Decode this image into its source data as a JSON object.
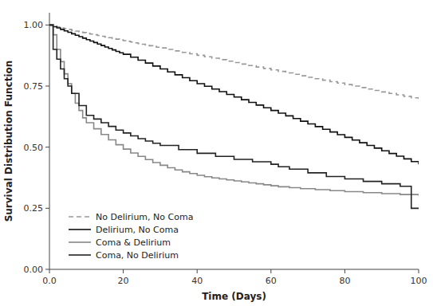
{
  "chart_data": {
    "type": "step",
    "xlabel": "Time (Days)",
    "ylabel": "Survival Distribution Function",
    "xlim": [
      0,
      100
    ],
    "ylim": [
      0.0,
      1.05
    ],
    "xticks": [
      {
        "value": 0,
        "label": "0.0"
      },
      20,
      40,
      60,
      80,
      100
    ],
    "yticks": [
      {
        "value": 0.0,
        "label": "0.00"
      },
      {
        "value": 0.25,
        "label": "0.25"
      },
      {
        "value": 0.5,
        "label": "0.50"
      },
      {
        "value": 0.75,
        "label": "0.75"
      },
      {
        "value": 1.0,
        "label": "1.00"
      }
    ],
    "grid": false,
    "legend": "lower left",
    "series": [
      {
        "name": "No Delirium, No Coma",
        "color": "#999999",
        "line_style": "dashed",
        "x": [
          0,
          1,
          2,
          3,
          4,
          5,
          6,
          7,
          8,
          9,
          10,
          11,
          12,
          13,
          14,
          15,
          16,
          17,
          18,
          19,
          20,
          21,
          22,
          23,
          24,
          25,
          26,
          27,
          28,
          29,
          30,
          32,
          34,
          36,
          38,
          40,
          42,
          44,
          46,
          48,
          50,
          52,
          54,
          56,
          58,
          60,
          62,
          64,
          66,
          68,
          70,
          72,
          74,
          76,
          78,
          80,
          82,
          84,
          86,
          88,
          90,
          92,
          94,
          96,
          98,
          100
        ],
        "values": [
          1.0,
          0.995,
          0.992,
          0.988,
          0.985,
          0.982,
          0.978,
          0.975,
          0.972,
          0.969,
          0.966,
          0.963,
          0.96,
          0.957,
          0.954,
          0.951,
          0.948,
          0.945,
          0.942,
          0.939,
          0.936,
          0.933,
          0.93,
          0.927,
          0.924,
          0.921,
          0.918,
          0.915,
          0.912,
          0.909,
          0.906,
          0.9,
          0.894,
          0.888,
          0.882,
          0.876,
          0.87,
          0.864,
          0.858,
          0.852,
          0.846,
          0.84,
          0.834,
          0.828,
          0.822,
          0.816,
          0.81,
          0.804,
          0.798,
          0.792,
          0.786,
          0.78,
          0.774,
          0.768,
          0.762,
          0.756,
          0.75,
          0.744,
          0.738,
          0.732,
          0.726,
          0.72,
          0.714,
          0.708,
          0.702,
          0.696
        ]
      },
      {
        "name": "Delirium, No Coma",
        "color": "#111111",
        "line_style": "solid",
        "x": [
          0,
          1,
          2,
          3,
          4,
          5,
          6,
          7,
          8,
          9,
          10,
          11,
          12,
          13,
          14,
          15,
          16,
          17,
          18,
          19,
          20,
          22,
          24,
          26,
          28,
          30,
          32,
          34,
          36,
          38,
          40,
          42,
          44,
          46,
          48,
          50,
          52,
          54,
          56,
          58,
          60,
          62,
          64,
          66,
          68,
          70,
          72,
          74,
          76,
          78,
          80,
          82,
          84,
          86,
          88,
          90,
          92,
          94,
          96,
          98,
          100
        ],
        "values": [
          1.0,
          0.993,
          0.988,
          0.982,
          0.976,
          0.97,
          0.964,
          0.958,
          0.952,
          0.946,
          0.94,
          0.934,
          0.928,
          0.922,
          0.916,
          0.91,
          0.904,
          0.898,
          0.892,
          0.886,
          0.88,
          0.868,
          0.856,
          0.844,
          0.832,
          0.82,
          0.808,
          0.796,
          0.784,
          0.772,
          0.76,
          0.749,
          0.738,
          0.727,
          0.716,
          0.705,
          0.694,
          0.683,
          0.672,
          0.661,
          0.65,
          0.639,
          0.628,
          0.617,
          0.606,
          0.595,
          0.584,
          0.573,
          0.562,
          0.551,
          0.54,
          0.529,
          0.518,
          0.507,
          0.496,
          0.485,
          0.474,
          0.463,
          0.452,
          0.441,
          0.43
        ]
      },
      {
        "name": "Coma & Delirium",
        "color": "#888888",
        "line_style": "solid",
        "x": [
          0,
          1,
          2,
          3,
          4,
          5,
          6,
          7,
          8,
          9,
          10,
          12,
          14,
          16,
          18,
          20,
          22,
          24,
          26,
          28,
          30,
          32,
          34,
          36,
          38,
          40,
          42,
          44,
          46,
          48,
          50,
          52,
          54,
          56,
          58,
          60,
          62,
          65,
          68,
          72,
          76,
          80,
          85,
          90,
          95,
          100
        ],
        "values": [
          1.0,
          0.96,
          0.9,
          0.85,
          0.8,
          0.76,
          0.72,
          0.68,
          0.65,
          0.62,
          0.6,
          0.575,
          0.552,
          0.53,
          0.51,
          0.492,
          0.476,
          0.462,
          0.449,
          0.437,
          0.426,
          0.416,
          0.407,
          0.399,
          0.392,
          0.385,
          0.379,
          0.374,
          0.37,
          0.366,
          0.362,
          0.358,
          0.354,
          0.35,
          0.346,
          0.342,
          0.338,
          0.334,
          0.33,
          0.326,
          0.322,
          0.318,
          0.314,
          0.31,
          0.306,
          0.302
        ]
      },
      {
        "name": "Coma, No Delirium",
        "color": "#222222",
        "line_style": "solid",
        "x": [
          0,
          1,
          2,
          3,
          4,
          5,
          6,
          8,
          10,
          12,
          14,
          16,
          18,
          20,
          22,
          24,
          26,
          28,
          30,
          35,
          40,
          45,
          50,
          55,
          60,
          62,
          65,
          70,
          75,
          80,
          85,
          90,
          95,
          98,
          100
        ],
        "values": [
          1.0,
          0.9,
          0.86,
          0.82,
          0.78,
          0.75,
          0.72,
          0.67,
          0.63,
          0.615,
          0.6,
          0.585,
          0.57,
          0.558,
          0.546,
          0.535,
          0.525,
          0.516,
          0.507,
          0.49,
          0.475,
          0.462,
          0.45,
          0.44,
          0.43,
          0.42,
          0.41,
          0.395,
          0.38,
          0.37,
          0.36,
          0.35,
          0.34,
          0.25,
          0.25
        ]
      }
    ]
  }
}
